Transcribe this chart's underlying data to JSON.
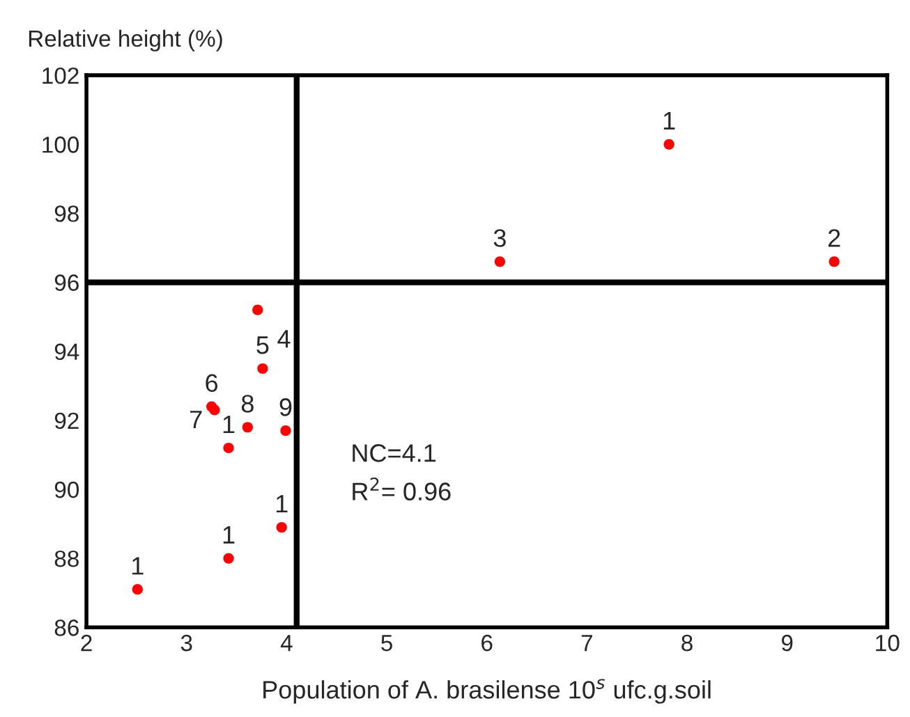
{
  "chart_data": {
    "type": "scatter",
    "xlabel": "Population of A. brasilense 10$^{s}$ ufc.g.soil",
    "ylabel": "Relative height (%)",
    "x": [
      7.82,
      6.13,
      9.47,
      3.71,
      3.76,
      3.25,
      3.28,
      3.61,
      3.99,
      3.42,
      3.95,
      3.42,
      2.51
    ],
    "series": [
      {
        "color": "#ff0000",
        "values": [
          100.0,
          96.6,
          96.6,
          95.2,
          93.5,
          92.4,
          92.3,
          91.8,
          91.7,
          91.2,
          88.9,
          88.0,
          87.1
        ]
      }
    ],
    "marker": "circle",
    "xlim": [
      2,
      10
    ],
    "xticks": [
      2,
      3,
      4,
      5,
      6,
      7,
      8,
      9,
      10
    ],
    "ylim": [
      86,
      102
    ],
    "yticks": [
      86,
      88,
      90,
      92,
      94,
      96,
      98,
      100,
      102
    ],
    "grid": false,
    "legend": false,
    "ref_lines": [
      {
        "axis": "x",
        "value": 4.1,
        "color": "#000000"
      },
      {
        "axis": "y",
        "value": 96,
        "color": "#000000"
      }
    ],
    "annotations": [
      {
        "text": "1",
        "x": 7.82,
        "y": 100.0
      },
      {
        "text": "3",
        "x": 6.13,
        "y": 96.6
      },
      {
        "text": "2",
        "x": 9.47,
        "y": 96.6
      },
      {
        "text": "4",
        "x": 3.71,
        "y": 95.2
      },
      {
        "text": "5",
        "x": 3.76,
        "y": 93.5
      },
      {
        "text": "6",
        "x": 3.25,
        "y": 92.4
      },
      {
        "text": "7",
        "x": 3.28,
        "y": 92.3
      },
      {
        "text": "8",
        "x": 3.61,
        "y": 91.8
      },
      {
        "text": "9",
        "x": 3.99,
        "y": 91.7
      },
      {
        "text": "1",
        "x": 3.42,
        "y": 91.2
      },
      {
        "text": "1",
        "x": 3.95,
        "y": 88.9
      },
      {
        "text": "1",
        "x": 3.42,
        "y": 88.0
      },
      {
        "text": "1",
        "x": 2.51,
        "y": 87.1
      },
      "NC=4.1",
      "R$^{2}$= 0.96"
    ]
  }
}
